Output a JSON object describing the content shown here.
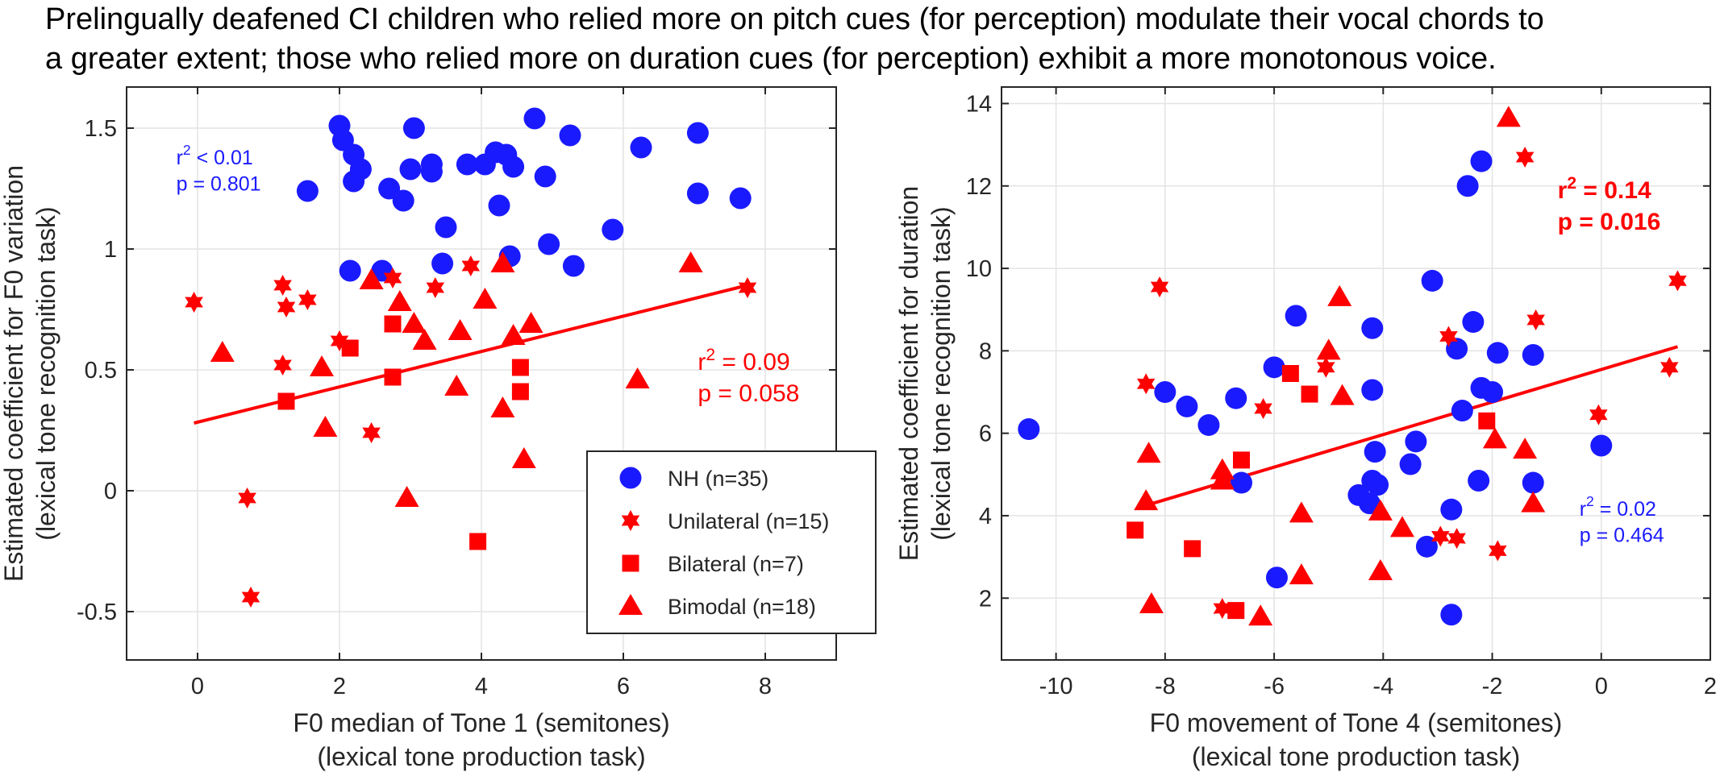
{
  "figure_title": {
    "line1": "Prelingually deafened CI children who relied more on pitch cues (for perception) modulate their vocal chords to",
    "line2": "a greater extent; those who relied more on duration cues (for perception) exhibit a more monotonous voice."
  },
  "colors": {
    "nh": "#1a1aff",
    "ci": "#ff0000",
    "axis": "#262626",
    "grid": "#e4e4e4"
  },
  "legend": [
    {
      "marker": "circle",
      "label": "NH (n=35)",
      "color": "#1a1aff"
    },
    {
      "marker": "hexagram",
      "label": "Unilateral (n=15)",
      "color": "#ff0000"
    },
    {
      "marker": "square",
      "label": "Bilateral (n=7)",
      "color": "#ff0000"
    },
    {
      "marker": "triangle",
      "label": "Bimodal (n=18)",
      "color": "#ff0000"
    }
  ],
  "chart_data": [
    {
      "type": "scatter",
      "title": "",
      "xlabel": [
        "F0 median of Tone 1 (semitones)",
        "(lexical tone production task)"
      ],
      "ylabel": [
        "Estimated coefficient for F0 variation",
        "(lexical tone recognition task)"
      ],
      "xlim": [
        -1,
        9
      ],
      "ylim": [
        -0.7,
        1.67
      ],
      "xticks": [
        0,
        2,
        4,
        6,
        8
      ],
      "yticks": [
        -0.5,
        0,
        0.5,
        1,
        1.5
      ],
      "xtick_labels": [
        "0",
        "2",
        "4",
        "6",
        "8"
      ],
      "ytick_labels": [
        "-0.5",
        "0",
        "0.5",
        "1",
        "1.5"
      ],
      "grid": true,
      "legend_position": "bottom-right",
      "annotations": [
        {
          "r2_label": "r",
          "r2_sup": "2",
          "r2_text": " < 0.01",
          "p_text": "p = 0.801",
          "color": "#1a1aff",
          "bold": false,
          "x": -0.3,
          "y": 1.35,
          "anchor": "start"
        },
        {
          "r2_label": "r",
          "r2_sup": "2",
          "r2_text": " = 0.09",
          "p_text": "p = 0.058",
          "color": "#ff0000",
          "bold": false,
          "x": 7.05,
          "y": 0.5,
          "anchor": "start"
        }
      ],
      "fit_line": {
        "x": [
          -0.05,
          7.75
        ],
        "y": [
          0.28,
          0.85
        ],
        "color": "#ff0000"
      },
      "series": [
        {
          "name": "NH",
          "marker": "circle",
          "color": "#1a1aff",
          "points": [
            [
              1.55,
              1.24
            ],
            [
              2.0,
              1.51
            ],
            [
              2.05,
              1.45
            ],
            [
              2.2,
              1.39
            ],
            [
              2.3,
              1.33
            ],
            [
              2.2,
              1.28
            ],
            [
              2.7,
              1.25
            ],
            [
              2.9,
              1.2
            ],
            [
              3.0,
              1.33
            ],
            [
              3.05,
              1.5
            ],
            [
              3.3,
              1.35
            ],
            [
              3.3,
              1.32
            ],
            [
              3.5,
              1.09
            ],
            [
              3.8,
              1.35
            ],
            [
              4.05,
              1.35
            ],
            [
              4.2,
              1.4
            ],
            [
              4.35,
              1.39
            ],
            [
              4.25,
              1.18
            ],
            [
              4.45,
              1.34
            ],
            [
              4.75,
              1.54
            ],
            [
              4.9,
              1.3
            ],
            [
              5.25,
              1.47
            ],
            [
              4.95,
              1.02
            ],
            [
              5.3,
              0.93
            ],
            [
              5.85,
              1.08
            ],
            [
              6.25,
              1.42
            ],
            [
              7.05,
              1.48
            ],
            [
              7.05,
              1.23
            ],
            [
              7.65,
              1.21
            ],
            [
              2.15,
              0.91
            ],
            [
              2.6,
              0.91
            ],
            [
              3.45,
              0.94
            ],
            [
              4.4,
              0.97
            ]
          ]
        },
        {
          "name": "Unilateral",
          "marker": "hexagram",
          "color": "#ff0000",
          "points": [
            [
              -0.05,
              0.78
            ],
            [
              1.2,
              0.85
            ],
            [
              1.25,
              0.76
            ],
            [
              1.55,
              0.79
            ],
            [
              1.2,
              0.52
            ],
            [
              2.0,
              0.62
            ],
            [
              2.75,
              0.88
            ],
            [
              3.35,
              0.84
            ],
            [
              3.85,
              0.93
            ],
            [
              2.45,
              0.24
            ],
            [
              0.7,
              -0.03
            ],
            [
              0.75,
              -0.44
            ],
            [
              7.75,
              0.84
            ]
          ]
        },
        {
          "name": "Bilateral",
          "marker": "square",
          "color": "#ff0000",
          "points": [
            [
              1.25,
              0.37
            ],
            [
              2.15,
              0.59
            ],
            [
              2.75,
              0.47
            ],
            [
              2.75,
              0.69
            ],
            [
              4.55,
              0.51
            ],
            [
              4.55,
              0.41
            ],
            [
              3.95,
              -0.21
            ]
          ]
        },
        {
          "name": "Bimodal",
          "marker": "triangle",
          "color": "#ff0000",
          "points": [
            [
              0.35,
              0.57
            ],
            [
              1.75,
              0.51
            ],
            [
              1.8,
              0.26
            ],
            [
              2.45,
              0.87
            ],
            [
              2.85,
              0.78
            ],
            [
              3.05,
              0.69
            ],
            [
              3.2,
              0.62
            ],
            [
              3.7,
              0.66
            ],
            [
              3.65,
              0.43
            ],
            [
              4.05,
              0.79
            ],
            [
              4.3,
              0.94
            ],
            [
              4.45,
              0.64
            ],
            [
              4.7,
              0.69
            ],
            [
              4.3,
              0.34
            ],
            [
              4.6,
              0.13
            ],
            [
              2.95,
              -0.03
            ],
            [
              6.2,
              0.46
            ],
            [
              6.95,
              0.94
            ]
          ]
        }
      ]
    },
    {
      "type": "scatter",
      "title": "",
      "xlabel": [
        "F0 movement of Tone 4 (semitones)",
        "(lexical tone production task)"
      ],
      "ylabel": [
        "Estimated coefficient for duration",
        "(lexical tone recognition task)"
      ],
      "xlim": [
        -11,
        2
      ],
      "ylim": [
        0.5,
        14.4
      ],
      "xticks": [
        -10,
        -8,
        -6,
        -4,
        -2,
        0,
        2
      ],
      "yticks": [
        2,
        4,
        6,
        8,
        10,
        12,
        14
      ],
      "xtick_labels": [
        "-10",
        "-8",
        "-6",
        "-4",
        "-2",
        "0",
        "2"
      ],
      "ytick_labels": [
        "2",
        "4",
        "6",
        "8",
        "10",
        "12",
        "14"
      ],
      "grid": true,
      "legend_position": "none",
      "annotations": [
        {
          "r2_label": "r",
          "r2_sup": "2",
          "r2_text": " = 0.14",
          "p_text": "p = 0.016",
          "color": "#ff0000",
          "bold": true,
          "x": -0.8,
          "y": 11.7,
          "anchor": "start"
        },
        {
          "r2_label": "r",
          "r2_sup": "2",
          "r2_text": " = 0.02",
          "p_text": "p = 0.464",
          "color": "#1a1aff",
          "bold": false,
          "x": -0.4,
          "y": 4.0,
          "anchor": "start"
        }
      ],
      "fit_line": {
        "x": [
          -8.35,
          1.4
        ],
        "y": [
          4.25,
          8.1
        ],
        "color": "#ff0000"
      },
      "series": [
        {
          "name": "NH",
          "marker": "circle",
          "color": "#1a1aff",
          "points": [
            [
              -10.5,
              6.1
            ],
            [
              -8.0,
              7.0
            ],
            [
              -7.6,
              6.65
            ],
            [
              -7.2,
              6.2
            ],
            [
              -6.7,
              6.85
            ],
            [
              -6.6,
              4.8
            ],
            [
              -6.0,
              7.6
            ],
            [
              -5.6,
              8.85
            ],
            [
              -4.45,
              4.5
            ],
            [
              -4.2,
              8.55
            ],
            [
              -4.2,
              7.05
            ],
            [
              -4.15,
              5.55
            ],
            [
              -4.2,
              4.85
            ],
            [
              -4.25,
              4.3
            ],
            [
              -4.1,
              4.75
            ],
            [
              -3.5,
              5.25
            ],
            [
              -3.4,
              5.8
            ],
            [
              -3.2,
              3.25
            ],
            [
              -3.1,
              9.7
            ],
            [
              -2.75,
              4.15
            ],
            [
              -2.65,
              8.05
            ],
            [
              -2.55,
              6.55
            ],
            [
              -2.45,
              12.0
            ],
            [
              -2.35,
              8.7
            ],
            [
              -2.2,
              12.6
            ],
            [
              -2.2,
              7.1
            ],
            [
              -2.0,
              7.0
            ],
            [
              -2.25,
              4.85
            ],
            [
              -1.9,
              7.95
            ],
            [
              -1.25,
              7.9
            ],
            [
              -1.25,
              4.8
            ],
            [
              -5.95,
              2.5
            ],
            [
              -2.75,
              1.6
            ],
            [
              0.0,
              5.7
            ]
          ]
        },
        {
          "name": "Unilateral",
          "marker": "hexagram",
          "color": "#ff0000",
          "points": [
            [
              -8.1,
              9.55
            ],
            [
              -8.35,
              7.2
            ],
            [
              -6.2,
              6.6
            ],
            [
              -5.05,
              7.6
            ],
            [
              -2.8,
              8.35
            ],
            [
              -2.95,
              3.5
            ],
            [
              -2.65,
              3.45
            ],
            [
              -1.9,
              3.15
            ],
            [
              -1.4,
              12.7
            ],
            [
              -1.2,
              8.75
            ],
            [
              -0.05,
              6.45
            ],
            [
              1.25,
              7.6
            ],
            [
              1.4,
              9.7
            ],
            [
              -6.95,
              1.75
            ]
          ]
        },
        {
          "name": "Bilateral",
          "marker": "square",
          "color": "#ff0000",
          "points": [
            [
              -8.55,
              3.65
            ],
            [
              -7.5,
              3.2
            ],
            [
              -6.6,
              5.35
            ],
            [
              -5.7,
              7.45
            ],
            [
              -5.35,
              6.95
            ],
            [
              -2.1,
              6.3
            ],
            [
              -6.7,
              1.7
            ]
          ]
        },
        {
          "name": "Bimodal",
          "marker": "triangle",
          "color": "#ff0000",
          "points": [
            [
              -8.3,
              5.5
            ],
            [
              -8.35,
              4.35
            ],
            [
              -8.25,
              1.85
            ],
            [
              -6.95,
              5.1
            ],
            [
              -6.95,
              4.85
            ],
            [
              -6.25,
              1.55
            ],
            [
              -5.5,
              4.05
            ],
            [
              -5.5,
              2.55
            ],
            [
              -5.0,
              8.0
            ],
            [
              -4.8,
              9.3
            ],
            [
              -4.75,
              6.9
            ],
            [
              -4.05,
              4.1
            ],
            [
              -4.05,
              2.65
            ],
            [
              -3.65,
              3.7
            ],
            [
              -1.95,
              5.85
            ],
            [
              -1.7,
              13.65
            ],
            [
              -1.4,
              5.6
            ],
            [
              -1.25,
              4.3
            ]
          ]
        }
      ]
    }
  ]
}
